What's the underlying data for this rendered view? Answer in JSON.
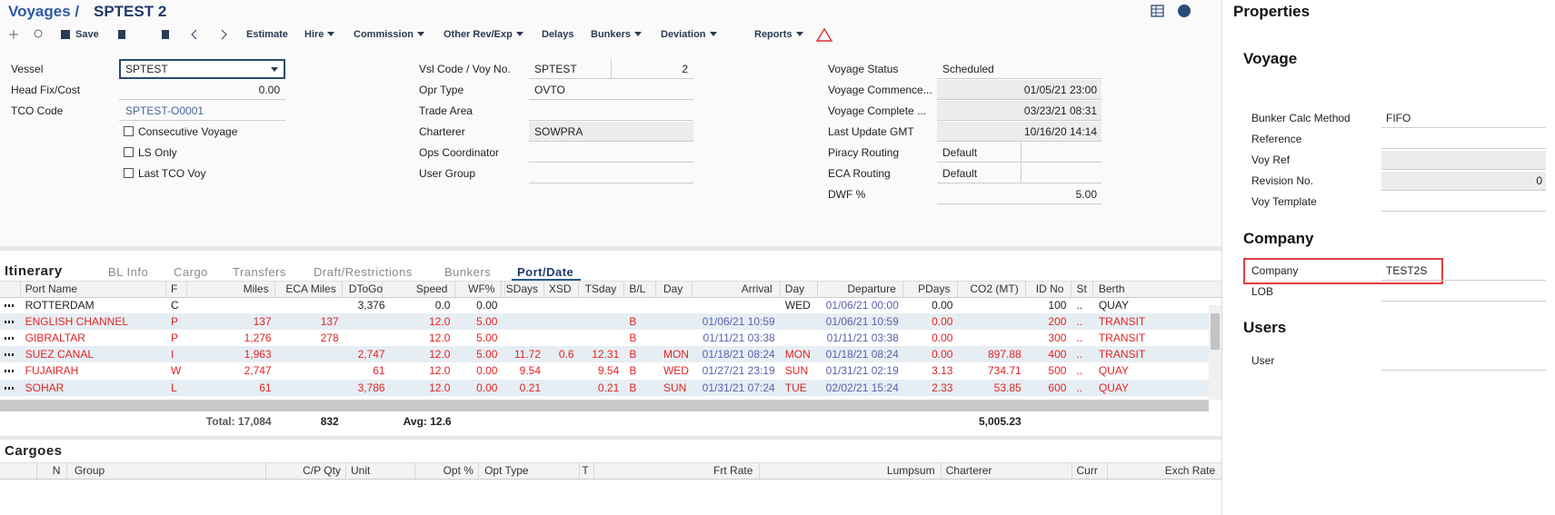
{
  "header": {
    "breadcrumb": "Voyages /",
    "title": "SPTEST 2"
  },
  "toolbar": [
    "Save",
    "Estimate",
    "Hire",
    "Commission",
    "Other Rev/Exp",
    "Delays",
    "Bunkers",
    "Deviation",
    "Reports"
  ],
  "form": {
    "col1": [
      {
        "label": "Vessel",
        "value": "SPTEST"
      },
      {
        "label": "Head Fix/Cost",
        "value": "0.00"
      },
      {
        "label": "TCO Code",
        "value": "SPTEST-O0001"
      }
    ],
    "checkboxes": [
      "Consecutive Voyage",
      "LS Only",
      "Last TCO Voy"
    ],
    "col2": [
      {
        "label": "Vsl Code / Voy No.",
        "value": "SPTEST",
        "value2": "2"
      },
      {
        "label": "Opr Type",
        "value": "OVTO"
      },
      {
        "label": "Trade Area"
      },
      {
        "label": "Charterer",
        "value": "SOWPRA"
      },
      {
        "label": "Ops Coordinator"
      },
      {
        "label": "User Group"
      }
    ],
    "col3": [
      {
        "label": "Voyage Status",
        "value": "Scheduled"
      },
      {
        "label": "Voyage Commence...",
        "value": "01/05/21 23:00"
      },
      {
        "label": "Voyage Complete ...",
        "value": "03/23/21 08:31"
      },
      {
        "label": "Last Update GMT",
        "value": "10/16/20 14:14"
      },
      {
        "label": "Piracy Routing",
        "value": "Default"
      },
      {
        "label": "ECA Routing",
        "value": "Default"
      },
      {
        "label": "DWF %",
        "value": "5.00"
      }
    ]
  },
  "itinerary": {
    "title": "Itinerary",
    "tabs": [
      "BL Info",
      "Cargo",
      "Transfers",
      "Draft/Restrictions",
      "Bunkers",
      "Port/Date"
    ],
    "columns": [
      "Port Name",
      "F",
      "Miles",
      "ECA Miles",
      "DToGo",
      "Speed",
      "WF%",
      "SDays",
      "XSD",
      "TSday",
      "B/L",
      "Day",
      "Arrival",
      "Day",
      "Departure",
      "PDays",
      "CO2 (MT)",
      "ID No",
      "St",
      "Berth"
    ],
    "rows": [
      [
        "ROTTERDAM",
        "C",
        null,
        null,
        "3,376",
        "0.0",
        "0.00",
        null,
        null,
        null,
        null,
        null,
        null,
        "WED",
        "01/06/21 00:00",
        "0.00",
        null,
        "100",
        "..",
        "QUAY"
      ],
      [
        "ENGLISH CHANNEL",
        "P",
        "137",
        "137",
        null,
        "12.0",
        "5.00",
        null,
        null,
        null,
        "B",
        null,
        "01/06/21 10:59",
        null,
        "01/06/21 10:59",
        "0.00",
        null,
        "200",
        "..",
        "TRANSIT"
      ],
      [
        "GIBRALTAR",
        "P",
        "1,276",
        "278",
        null,
        "12.0",
        "5.00",
        null,
        null,
        null,
        "B",
        null,
        "01/11/21 03:38",
        null,
        "01/11/21 03:38",
        "0.00",
        null,
        "300",
        "..",
        "TRANSIT"
      ],
      [
        "SUEZ CANAL",
        "I",
        "1,963",
        null,
        "2,747",
        "12.0",
        "5.00",
        "11.72",
        "0.6",
        "12.31",
        "B",
        "MON",
        "01/18/21 08:24",
        "MON",
        "01/18/21 08:24",
        "0.00",
        "897.88",
        "400",
        "..",
        "TRANSIT"
      ],
      [
        "FUJAIRAH",
        "W",
        "2,747",
        null,
        "61",
        "12.0",
        "0.00",
        "9.54",
        null,
        "9.54",
        "B",
        "WED",
        "01/27/21 23:19",
        "SUN",
        "01/31/21 02:19",
        "3.13",
        "734.71",
        "500",
        "..",
        "QUAY"
      ],
      [
        "SOHAR",
        "L",
        "61",
        null,
        "3,786",
        "12.0",
        "0.00",
        "0.21",
        null,
        "0.21",
        "B",
        "SUN",
        "01/31/21 07:24",
        "TUE",
        "02/02/21 15:24",
        "2.33",
        "53.85",
        "600",
        "..",
        "QUAY"
      ]
    ],
    "totals": [
      "Total: 17,084",
      "832",
      "Avg: 12.6",
      "5,005.23"
    ]
  },
  "cargoes": {
    "title": "Cargoes",
    "columns": [
      "N",
      "Group",
      "C/P Qty",
      "Unit",
      "Opt %",
      "Opt Type",
      "T",
      "Frt Rate",
      "Lumpsum",
      "Charterer",
      "Curr",
      "Exch Rate"
    ]
  },
  "properties": {
    "title": "Properties",
    "sections": [
      {
        "title": "Voyage",
        "fields": [
          {
            "label": "Bunker Calc Method",
            "value": "FIFO"
          },
          {
            "label": "Reference"
          },
          {
            "label": "Voy Ref"
          },
          {
            "label": "Revision No.",
            "value": "0"
          },
          {
            "label": "Voy Template"
          }
        ]
      },
      {
        "title": "Company",
        "fields": [
          {
            "label": "Company",
            "value": "TEST2S"
          },
          {
            "label": "LOB"
          }
        ]
      },
      {
        "title": "Users",
        "fields": [
          {
            "label": "User"
          }
        ]
      }
    ]
  }
}
